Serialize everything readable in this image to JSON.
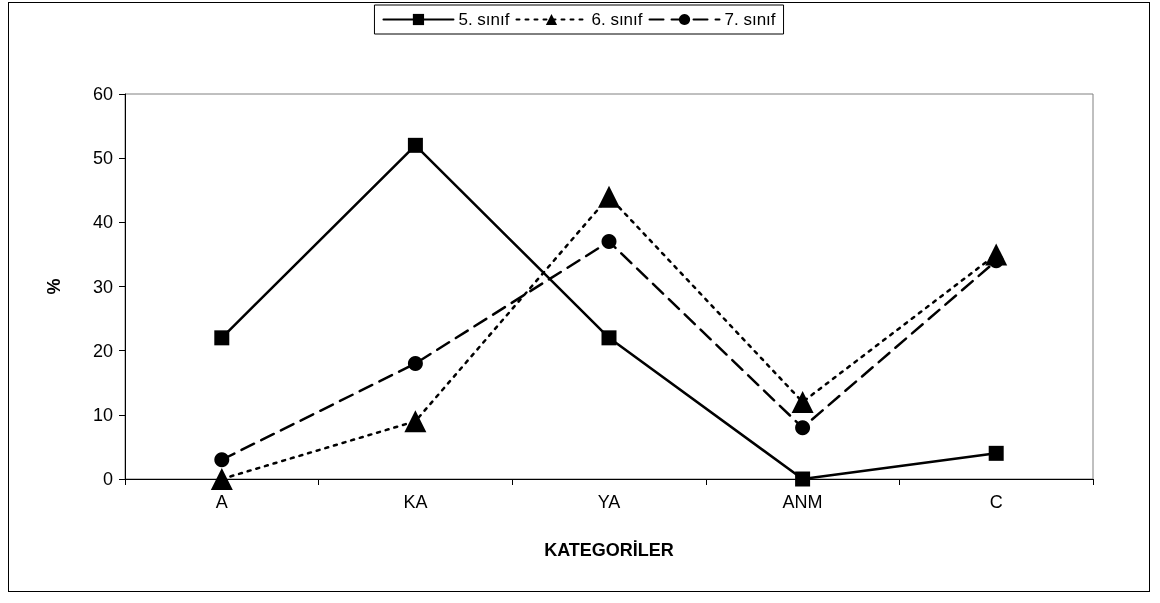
{
  "chart_data": {
    "type": "line",
    "xlabel": "KATEGORİLER",
    "ylabel": "%",
    "categories": [
      "A",
      "KA",
      "YA",
      "ANM",
      "C"
    ],
    "series": [
      {
        "name": "5. sınıf",
        "color": "#000000",
        "marker": "square",
        "line_style": "solid",
        "values": [
          22,
          52,
          22,
          0,
          4
        ]
      },
      {
        "name": "6. sınıf",
        "color": "#000000",
        "marker": "triangle",
        "line_style": "dotted",
        "values": [
          0,
          9,
          44,
          12,
          35
        ]
      },
      {
        "name": "7. sınıf",
        "color": "#000000",
        "marker": "circle",
        "line_style": "dashed",
        "values": [
          3,
          18,
          37,
          8,
          34
        ]
      }
    ],
    "ylim": [
      0,
      60
    ],
    "yticks": [
      0,
      10,
      20,
      30,
      40,
      50,
      60
    ],
    "grid": false,
    "legend": "top"
  }
}
